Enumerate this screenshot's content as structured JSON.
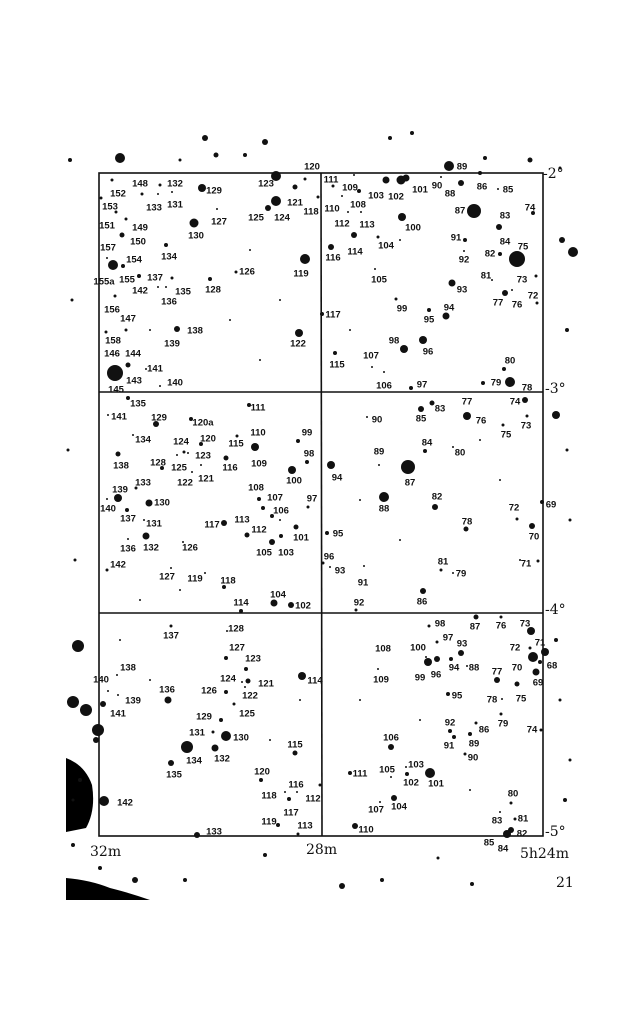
{
  "chart": {
    "type": "star-chart",
    "ra_labels": [
      "32m",
      "28m",
      "5h24m"
    ],
    "dec_labels": [
      "-2°",
      "-3°",
      "-4°",
      "-5°"
    ],
    "ink_color": "#111111",
    "paper_color": "#ffffff",
    "boxes": [
      {
        "labels": [
          "120",
          "123",
          "129",
          "132",
          "148",
          "152",
          "121",
          "118",
          "133",
          "131",
          "153",
          "125",
          "124",
          "127",
          "151",
          "149",
          "130",
          "150",
          "157",
          "154",
          "134",
          "155a",
          "155",
          "126",
          "119",
          "137",
          "142",
          "135",
          "136",
          "128",
          "156",
          "147",
          "138",
          "139",
          "158",
          "122",
          "146",
          "144",
          "141",
          "145",
          "143",
          "140"
        ]
      },
      {
        "labels": [
          "111",
          "109",
          "110",
          "108",
          "103",
          "102",
          "101",
          "90",
          "89",
          "88",
          "86",
          "85",
          "87",
          "74",
          "83",
          "112",
          "113",
          "100",
          "91",
          "84",
          "75",
          "114",
          "104",
          "116",
          "82",
          "92",
          "105",
          "81",
          "73",
          "93",
          "72",
          "77",
          "76",
          "99",
          "94",
          "117",
          "95",
          "98",
          "96",
          "115",
          "107",
          "80",
          "106",
          "97",
          "79",
          "78"
        ]
      },
      {
        "labels": [
          "135",
          "141",
          "111",
          "129",
          "120a",
          "134",
          "124",
          "120",
          "115",
          "110",
          "109",
          "99",
          "123",
          "138",
          "128",
          "125",
          "116",
          "98",
          "121",
          "122",
          "100",
          "133",
          "108",
          "139",
          "107",
          "97",
          "130",
          "140",
          "106",
          "137",
          "131",
          "117",
          "113",
          "112",
          "101",
          "132",
          "136",
          "126",
          "105",
          "103",
          "142",
          "127",
          "119",
          "118",
          "104",
          "102",
          "114"
        ]
      },
      {
        "labels": [
          "83",
          "85",
          "77",
          "76",
          "74",
          "73",
          "90",
          "75",
          "84",
          "80",
          "89",
          "94",
          "87",
          "82",
          "88",
          "69",
          "72",
          "78",
          "70",
          "95",
          "96",
          "81",
          "93",
          "71",
          "91",
          "79",
          "86",
          "92"
        ]
      },
      {
        "labels": [
          "137",
          "128",
          "127",
          "123",
          "138",
          "114",
          "124",
          "121",
          "140",
          "122",
          "126",
          "136",
          "139",
          "141",
          "125",
          "129",
          "131",
          "130",
          "115",
          "134",
          "132",
          "135",
          "120",
          "116",
          "112",
          "118",
          "117",
          "142",
          "119",
          "113",
          "133"
        ]
      },
      {
        "labels": [
          "98",
          "87",
          "76",
          "73",
          "97",
          "93",
          "108",
          "100",
          "72",
          "71",
          "99",
          "96",
          "94",
          "88",
          "70",
          "68",
          "109",
          "77",
          "69",
          "75",
          "95",
          "78",
          "92",
          "79",
          "86",
          "74",
          "106",
          "91",
          "89",
          "90",
          "103",
          "105",
          "111",
          "101",
          "102",
          "80",
          "104",
          "107",
          "81",
          "83",
          "82",
          "110",
          "85",
          "84"
        ]
      }
    ]
  },
  "page_number": "21"
}
